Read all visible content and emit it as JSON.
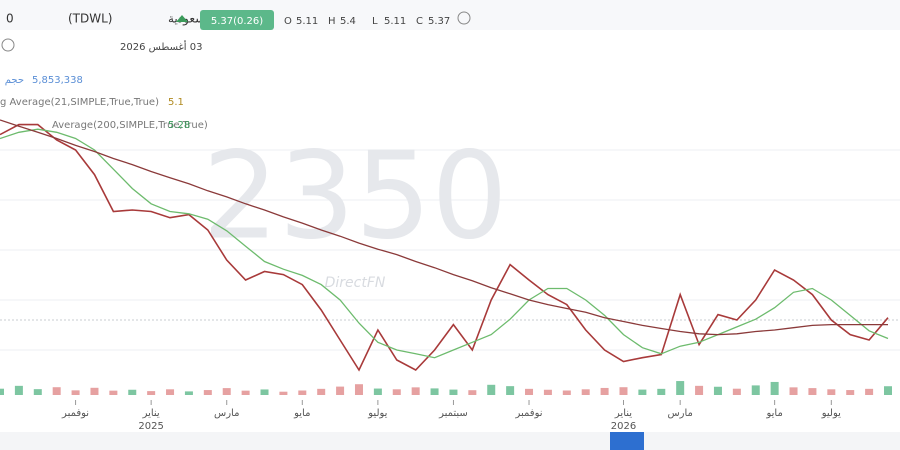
{
  "header": {
    "prefix": "0",
    "title": "كيان السعودية",
    "ticker": "(TDWL)",
    "badge": "5.37(0.26)",
    "date": "03 أغسطس 2026",
    "ohlc": [
      {
        "label": "O",
        "value": 5.11
      },
      {
        "label": "H",
        "value": 5.4
      },
      {
        "label": "L",
        "value": 5.11
      },
      {
        "label": "C",
        "value": 5.37
      }
    ],
    "watermark": "2350",
    "brand": "DirectFN"
  },
  "chart_data": {
    "type": "line",
    "categories": [
      null,
      null,
      null,
      null,
      "نوفمبر",
      null,
      null,
      null,
      "يناير",
      null,
      null,
      null,
      "مارس",
      null,
      null,
      null,
      "مايو",
      null,
      null,
      null,
      "يوليو",
      null,
      null,
      null,
      "سبتمبر",
      null,
      null,
      null,
      "نوفمبر",
      null,
      null,
      null,
      null,
      "يناير",
      null,
      null,
      "مارس",
      null,
      null,
      null,
      null,
      "مايو",
      null,
      null,
      "يوليو",
      null,
      null,
      null
    ],
    "year_categories": [
      null,
      null,
      null,
      null,
      null,
      null,
      null,
      null,
      "2025",
      null,
      null,
      null,
      null,
      null,
      null,
      null,
      null,
      null,
      null,
      null,
      null,
      null,
      null,
      null,
      null,
      null,
      null,
      null,
      null,
      null,
      null,
      null,
      null,
      "2026",
      null,
      null,
      null,
      null,
      null,
      null,
      null,
      null,
      null,
      null,
      null,
      null,
      null,
      null
    ],
    "ylim": [
      4.3,
      8.72
    ],
    "series": [
      {
        "color": "#a83a3a",
        "values": [
          7.75,
          7.88,
          7.88,
          7.68,
          7.55,
          7.23,
          6.75,
          6.77,
          6.75,
          6.67,
          6.71,
          6.51,
          6.12,
          5.86,
          5.97,
          5.93,
          5.8,
          5.47,
          5.08,
          4.69,
          5.21,
          4.82,
          4.69,
          4.95,
          5.28,
          4.95,
          5.6,
          6.06,
          5.86,
          5.67,
          5.54,
          5.21,
          4.95,
          4.8,
          4.85,
          4.89,
          5.67,
          5.02,
          5.41,
          5.34,
          5.6,
          5.99,
          5.86,
          5.67,
          5.34,
          5.15,
          5.08,
          5.37
        ]
      },
      {
        "name": "g Average(21,SIMPLE,True,True)",
        "color": "#6dbb6d",
        "values": [
          7.7,
          7.78,
          7.82,
          7.78,
          7.7,
          7.55,
          7.3,
          7.05,
          6.85,
          6.75,
          6.72,
          6.65,
          6.5,
          6.3,
          6.1,
          6.0,
          5.92,
          5.8,
          5.6,
          5.3,
          5.05,
          4.95,
          4.9,
          4.85,
          4.95,
          5.05,
          5.15,
          5.35,
          5.6,
          5.75,
          5.75,
          5.6,
          5.4,
          5.15,
          4.98,
          4.9,
          5.0,
          5.05,
          5.15,
          5.25,
          5.35,
          5.5,
          5.7,
          5.75,
          5.6,
          5.4,
          5.2,
          5.1
        ]
      },
      {
        "name": "Average(200,SIMPLE,True,True)",
        "color": "#8b3a3a",
        "values": [
          7.94,
          7.86,
          7.78,
          7.7,
          7.61,
          7.53,
          7.44,
          7.36,
          7.27,
          7.19,
          7.11,
          7.02,
          6.94,
          6.85,
          6.77,
          6.68,
          6.6,
          6.51,
          6.43,
          6.34,
          6.26,
          6.19,
          6.1,
          6.02,
          5.93,
          5.85,
          5.76,
          5.68,
          5.6,
          5.54,
          5.49,
          5.44,
          5.37,
          5.32,
          5.27,
          5.23,
          5.19,
          5.16,
          5.15,
          5.16,
          5.19,
          5.21,
          5.24,
          5.27,
          5.28,
          5.28,
          5.28,
          5.28
        ]
      }
    ],
    "volume": {
      "name": "حجم",
      "up_color": "#5cb88a",
      "down_color": "#e08a8a",
      "ylim": [
        0,
        20000000
      ],
      "values": [
        4200000,
        6100000,
        3900000,
        5200000,
        3100000,
        4800000,
        2900000,
        3500000,
        2600000,
        3800000,
        2400000,
        3300000,
        4600000,
        2900000,
        3700000,
        2200000,
        3000000,
        4100000,
        5600000,
        7200000,
        4300000,
        3800000,
        5100000,
        4400000,
        3600000,
        3200000,
        6800000,
        5900000,
        4100000,
        3500000,
        3000000,
        3800000,
        4700000,
        5200000,
        3600000,
        4100000,
        9300000,
        6100000,
        5500000,
        4200000,
        6400000,
        8700000,
        5100000,
        4600000,
        3800000,
        3300000,
        4100000,
        5853338
      ],
      "value_labels": [
        null,
        null,
        null,
        null,
        null,
        null,
        null,
        null,
        null,
        null,
        null,
        null,
        null,
        null,
        null,
        null,
        null,
        null,
        null,
        null,
        null,
        null,
        null,
        null,
        null,
        null,
        null,
        null,
        null,
        null,
        null,
        null,
        null,
        null,
        null,
        null,
        null,
        null,
        null,
        null,
        null,
        null,
        null,
        null,
        null,
        null,
        null,
        "5,853,338"
      ]
    }
  }
}
